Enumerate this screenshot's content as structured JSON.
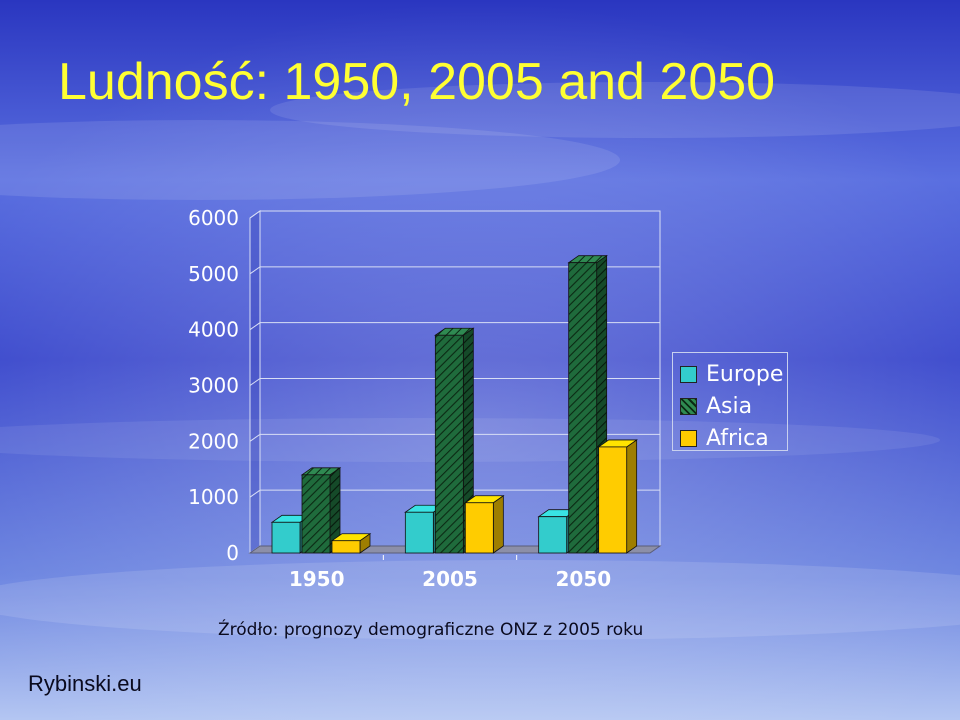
{
  "slide": {
    "title": "Ludność: 1950, 2005 and 2050",
    "source_note": "Źródło: prognozy demograficzne ONZ z 2005 roku",
    "site": "Rybinski.eu"
  },
  "colors": {
    "title": "#ffff33",
    "europe": "#33cccc",
    "asia": "#1f6b3c",
    "africa": "#ffcc00",
    "background_top": "#3340c8",
    "background_bottom": "#a9bff0"
  },
  "chart_data": {
    "type": "bar",
    "style": "3d-clustered-column",
    "categories": [
      "1950",
      "2005",
      "2050"
    ],
    "series": [
      {
        "name": "Europe",
        "values": [
          550,
          730,
          650
        ],
        "color": "#33cccc",
        "pattern": "solid"
      },
      {
        "name": "Asia",
        "values": [
          1400,
          3900,
          5200
        ],
        "color": "#1f6b3c",
        "pattern": "diagonal-hatch"
      },
      {
        "name": "Africa",
        "values": [
          220,
          900,
          1900
        ],
        "color": "#ffcc00",
        "pattern": "solid"
      }
    ],
    "yticks": [
      "0",
      "1000",
      "2000",
      "3000",
      "4000",
      "5000",
      "6000"
    ],
    "ylim": [
      0,
      6000
    ],
    "grid": true,
    "legend_position": "right"
  }
}
